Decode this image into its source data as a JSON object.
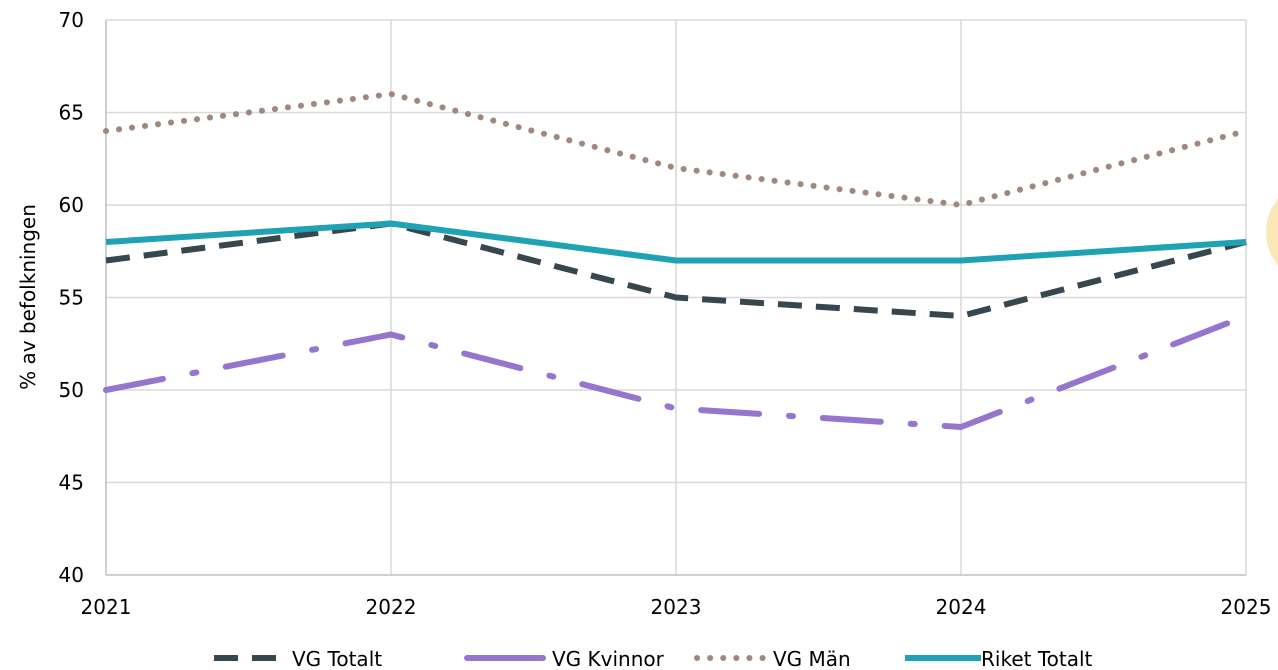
{
  "chart_data": {
    "type": "line",
    "x": [
      "2021",
      "2022",
      "2023",
      "2024",
      "2025"
    ],
    "ylabel": "% av befolkningen",
    "xlabel": "",
    "ylim": [
      40,
      70
    ],
    "yticks": [
      "40",
      "45",
      "50",
      "55",
      "60",
      "65",
      "70"
    ],
    "grid": true,
    "legend_position": "bottom",
    "series": [
      {
        "name": "VG Totalt",
        "values": [
          57,
          59,
          55,
          54,
          58
        ],
        "color": "#37474f",
        "style": "dashed"
      },
      {
        "name": "VG Kvinnor",
        "values": [
          50,
          53,
          49,
          48,
          54
        ],
        "color": "#9575cd",
        "style": "dash-dot"
      },
      {
        "name": "VG Män",
        "values": [
          64,
          66,
          62,
          60,
          64
        ],
        "color": "#a1887f",
        "style": "dotted"
      },
      {
        "name": "Riket Totalt",
        "values": [
          58,
          59,
          57,
          57,
          58
        ],
        "color": "#1fa2b4",
        "style": "solid"
      }
    ]
  }
}
